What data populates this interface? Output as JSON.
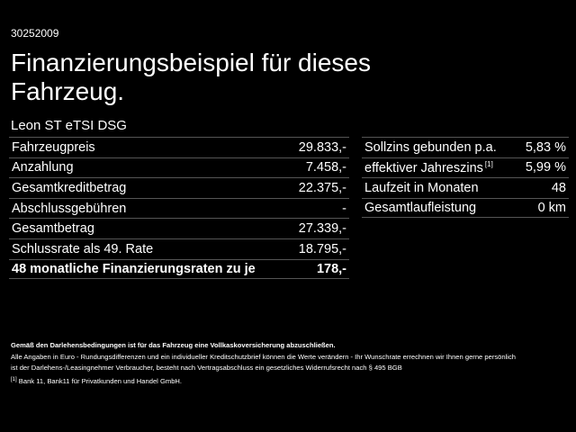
{
  "header": {
    "code": "30252009",
    "title_lines": [
      "Finanzierungsbeispiel für dieses",
      "Fahrzeug."
    ],
    "model": "Leon ST eTSI DSG"
  },
  "left_table": {
    "rows": [
      {
        "label": "Fahrzeugpreis",
        "value": "29.833,-"
      },
      {
        "label": "Anzahlung",
        "value": "7.458,-"
      },
      {
        "label": "Gesamtkreditbetrag",
        "value": "22.375,-"
      },
      {
        "label": "Abschlussgebühren",
        "value": "-"
      },
      {
        "label": "Gesamtbetrag",
        "value": "27.339,-"
      },
      {
        "label": "Schlussrate als 49. Rate",
        "value": "18.795,-"
      },
      {
        "label": "48 monatliche Finanzierungsraten zu je",
        "value": "178,-"
      }
    ]
  },
  "right_table": {
    "rows": [
      {
        "label": "Sollzins gebunden p.a.",
        "value": "5,83 %"
      },
      {
        "label": "effektiver Jahreszins",
        "note": "[1]",
        "value": "5,99 %"
      },
      {
        "label": "Laufzeit in Monaten",
        "value": "48"
      },
      {
        "label": "Gesamtlaufleistung",
        "value": "0 km"
      }
    ]
  },
  "footer": {
    "bold_line": "Gemäß den Darlehensbedingungen ist für das Fahrzeug eine Vollkaskoversicherung abzuschließen.",
    "lines": [
      "Alle Angaben in Euro - Rundungsdifferenzen und ein individueller Kreditschutzbrief können die Werte verändern - Ihr Wunschrate errechnen wir Ihnen gerne persönlich",
      "ist der Darlehens-/Leasingnehmer Verbraucher, besteht nach Vertragsabschluss ein gesetzliches Widerrufsrecht nach § 495 BGB"
    ],
    "footnote": {
      "marker": "[1]",
      "text": "Bank 11, Bank11 für Privatkunden und Handel GmbH."
    }
  }
}
